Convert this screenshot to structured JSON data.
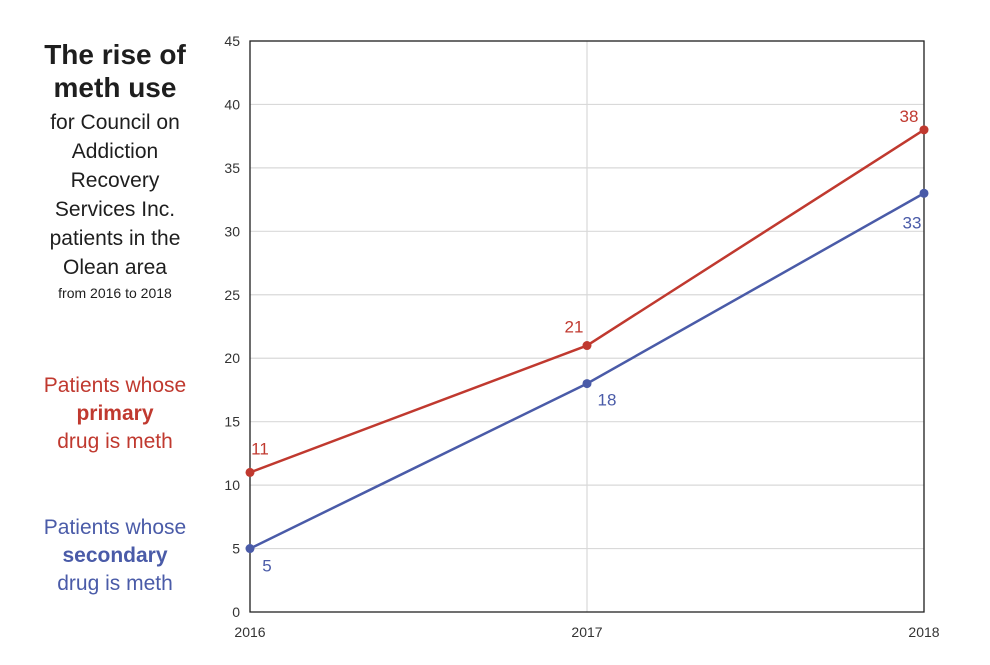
{
  "sidebar": {
    "title": "The rise of meth use",
    "subtitle": "for Council on\nAddiction\nRecovery\nServices Inc.\npatients in the\nOlean area",
    "date_range": "from 2016 to 2018"
  },
  "legend": {
    "primary": {
      "line1": "Patients whose",
      "emphasis": "primary",
      "line3": "drug is meth"
    },
    "secondary": {
      "line1": "Patients whose",
      "emphasis": "secondary",
      "line3": "drug is meth"
    }
  },
  "colors": {
    "primary": "#c0392f",
    "secondary": "#4a5ba8",
    "grid": "#d9d9d9",
    "axis": "#222222",
    "tick_text": "#333333"
  },
  "chart_data": {
    "type": "line",
    "title": "The rise of meth use",
    "xlabel": "",
    "ylabel": "",
    "x": [
      "2016",
      "2017",
      "2018"
    ],
    "ylim": [
      0,
      45
    ],
    "yticks": [
      0,
      5,
      10,
      15,
      20,
      25,
      30,
      35,
      40,
      45
    ],
    "grid": true,
    "legend_position": "left",
    "series": [
      {
        "name": "Patients whose primary drug is meth",
        "key": "primary",
        "values": [
          11,
          21,
          38
        ]
      },
      {
        "name": "Patients whose secondary drug is meth",
        "key": "secondary",
        "values": [
          5,
          18,
          33
        ]
      }
    ]
  }
}
